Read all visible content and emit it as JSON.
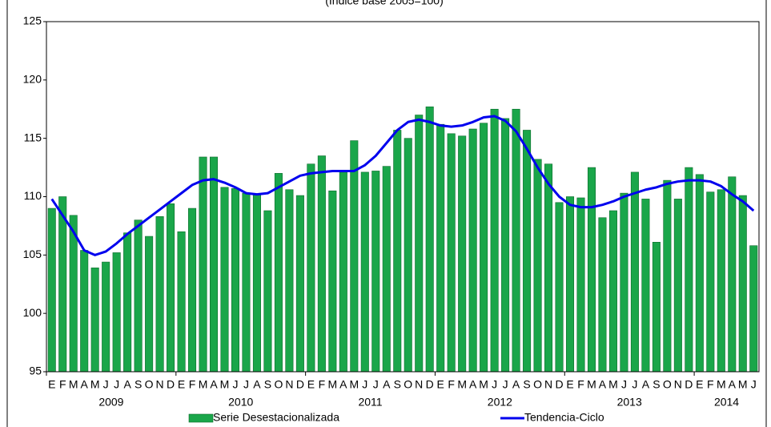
{
  "chart_data": {
    "type": "bar_line",
    "subtitle": "(Índice base 2005=100)",
    "categories": [
      "E",
      "F",
      "M",
      "A",
      "M",
      "J",
      "J",
      "A",
      "S",
      "O",
      "N",
      "D",
      "E",
      "F",
      "M",
      "A",
      "M",
      "J",
      "J",
      "A",
      "S",
      "O",
      "N",
      "D",
      "E",
      "F",
      "M",
      "A",
      "M",
      "J",
      "J",
      "A",
      "S",
      "O",
      "N",
      "D",
      "E",
      "F",
      "M",
      "A",
      "M",
      "J",
      "J",
      "A",
      "S",
      "O",
      "N",
      "D",
      "E",
      "F",
      "M",
      "A",
      "M",
      "J",
      "J",
      "A",
      "S",
      "O",
      "N",
      "D",
      "E",
      "F",
      "M",
      "A",
      "M",
      "J"
    ],
    "years": [
      "2009",
      "2010",
      "2011",
      "2012",
      "2013",
      "2014"
    ],
    "ylim": [
      95,
      125
    ],
    "yticks": [
      95,
      100,
      105,
      110,
      115,
      120,
      125
    ],
    "series": [
      {
        "name": "Serie Desestacionalizada",
        "type": "bar",
        "color": "#1aa64a",
        "values": [
          109,
          110,
          108.4,
          105.4,
          103.9,
          104.4,
          105.2,
          106.9,
          108,
          106.6,
          108.3,
          109.4,
          107,
          109,
          113.4,
          113.4,
          110.8,
          110.7,
          110.3,
          110.2,
          108.8,
          112,
          110.6,
          110.1,
          112.8,
          113.5,
          110.5,
          112.1,
          114.8,
          112.1,
          112.2,
          112.6,
          115.7,
          115,
          117,
          117.7,
          116.2,
          115.4,
          115.2,
          115.8,
          116.3,
          117.5,
          116.7,
          117.5,
          115.7,
          113.2,
          112.8,
          109.5,
          110,
          109.9,
          112.5,
          108.2,
          108.8,
          110.3,
          112.1,
          109.8,
          106.1,
          111.4,
          109.8,
          112.5,
          111.9,
          110.4,
          110.6,
          111.7,
          110.1,
          105.8
        ]
      },
      {
        "name": "Tendencia-Ciclo",
        "type": "line",
        "color": "#0000ee",
        "values": [
          109.8,
          108.4,
          107,
          105.4,
          105,
          105.3,
          106,
          106.8,
          107.5,
          108.2,
          108.9,
          109.6,
          110.3,
          111,
          111.4,
          111.5,
          111.2,
          110.8,
          110.3,
          110.2,
          110.3,
          110.8,
          111.3,
          111.8,
          112,
          112.1,
          112.2,
          112.2,
          112.2,
          112.7,
          113.5,
          114.6,
          115.7,
          116.4,
          116.6,
          116.4,
          116.1,
          116,
          116.1,
          116.4,
          116.8,
          116.9,
          116.5,
          115.6,
          114.1,
          112.5,
          111.1,
          110,
          109.3,
          109.1,
          109.1,
          109.3,
          109.6,
          110,
          110.3,
          110.6,
          110.8,
          111.1,
          111.3,
          111.4,
          111.4,
          111.3,
          110.9,
          110.2,
          109.6,
          108.8
        ]
      }
    ]
  }
}
